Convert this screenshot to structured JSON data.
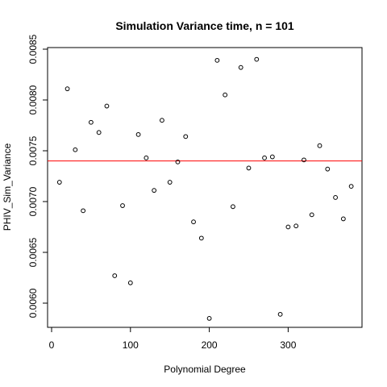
{
  "chart_data": {
    "type": "scatter",
    "title": "Simulation Variance time, n =  101",
    "xlabel": "Polynomial Degree",
    "ylabel": "PHIV_Sim_Variance",
    "xlim": [
      0,
      390
    ],
    "ylim": [
      0.00575,
      0.0085
    ],
    "xticks": [
      0,
      100,
      200,
      300
    ],
    "xtick_labels": [
      "0",
      "100",
      "200",
      "300"
    ],
    "yticks": [
      0.006,
      0.0065,
      0.007,
      0.0075,
      0.008,
      0.0085
    ],
    "ytick_labels": [
      "0.0060",
      "0.0065",
      "0.0070",
      "0.0075",
      "0.0080",
      "0.0085"
    ],
    "grid": false,
    "point_color": "#000000",
    "hline": {
      "y": 0.0074,
      "color": "#ff0000"
    },
    "points": [
      {
        "x": 10,
        "y": 0.00719
      },
      {
        "x": 20,
        "y": 0.00811
      },
      {
        "x": 30,
        "y": 0.00751
      },
      {
        "x": 40,
        "y": 0.00691
      },
      {
        "x": 50,
        "y": 0.00778
      },
      {
        "x": 60,
        "y": 0.00768
      },
      {
        "x": 70,
        "y": 0.00794
      },
      {
        "x": 80,
        "y": 0.00627
      },
      {
        "x": 90,
        "y": 0.00696
      },
      {
        "x": 100,
        "y": 0.0062
      },
      {
        "x": 110,
        "y": 0.00766
      },
      {
        "x": 120,
        "y": 0.00743
      },
      {
        "x": 130,
        "y": 0.00711
      },
      {
        "x": 140,
        "y": 0.0078
      },
      {
        "x": 150,
        "y": 0.00719
      },
      {
        "x": 160,
        "y": 0.00739
      },
      {
        "x": 170,
        "y": 0.00764
      },
      {
        "x": 180,
        "y": 0.0068
      },
      {
        "x": 190,
        "y": 0.00664
      },
      {
        "x": 200,
        "y": 0.00585
      },
      {
        "x": 210,
        "y": 0.00839
      },
      {
        "x": 220,
        "y": 0.00805
      },
      {
        "x": 230,
        "y": 0.00695
      },
      {
        "x": 240,
        "y": 0.00832
      },
      {
        "x": 250,
        "y": 0.00733
      },
      {
        "x": 260,
        "y": 0.0084
      },
      {
        "x": 270,
        "y": 0.00743
      },
      {
        "x": 280,
        "y": 0.00744
      },
      {
        "x": 290,
        "y": 0.00589
      },
      {
        "x": 300,
        "y": 0.00675
      },
      {
        "x": 310,
        "y": 0.00676
      },
      {
        "x": 320,
        "y": 0.00741
      },
      {
        "x": 330,
        "y": 0.00687
      },
      {
        "x": 340,
        "y": 0.00755
      },
      {
        "x": 350,
        "y": 0.00732
      },
      {
        "x": 360,
        "y": 0.00704
      },
      {
        "x": 370,
        "y": 0.00683
      },
      {
        "x": 380,
        "y": 0.00715
      }
    ]
  }
}
